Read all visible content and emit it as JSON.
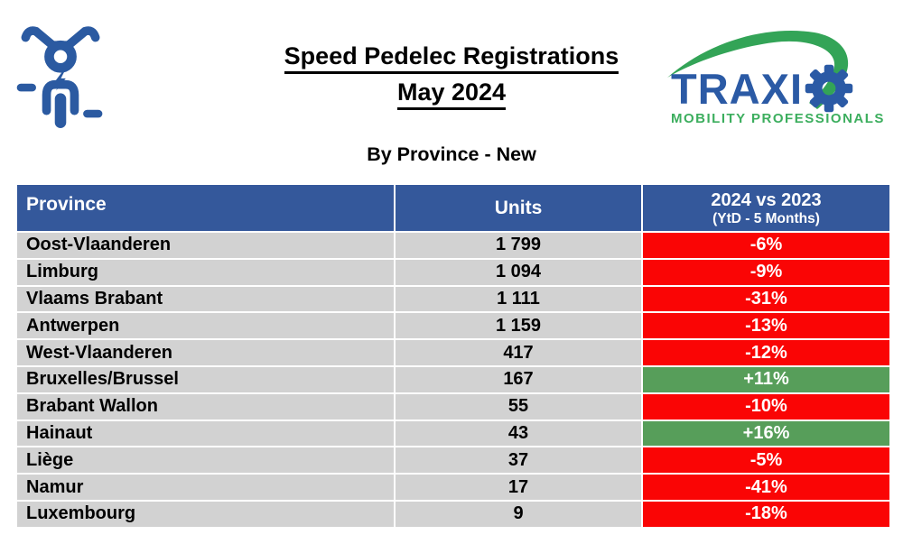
{
  "header": {
    "title_line1": "Speed Pedelec Registrations",
    "title_line2": "May 2024",
    "subtitle": "By Province - New"
  },
  "logo": {
    "brand_text": "TRAXI",
    "brand_o_icon": "gear-icon",
    "tagline": "MOBILITY PROFESSIONALS"
  },
  "icons": {
    "top_left": "speed-pedelec-icon"
  },
  "colors": {
    "header_bg": "#34589B",
    "row_bg": "#D2D2D2",
    "negative_bg": "#FA0505",
    "positive_bg": "#579E5A",
    "brand_blue": "#2B5AA5",
    "brand_green": "#33A457",
    "tagline_green": "#3CAE5E",
    "icon_blue": "#2B5AA1"
  },
  "table": {
    "columns": [
      "Province",
      "Units",
      "2024 vs 2023"
    ],
    "change_subtitle": "(YtD - 5 Months)",
    "rows": [
      {
        "province": "Oost-Vlaanderen",
        "units": "1 799",
        "change": "-6%"
      },
      {
        "province": "Limburg",
        "units": "1 094",
        "change": "-9%"
      },
      {
        "province": "Vlaams Brabant",
        "units": "1 111",
        "change": "-31%"
      },
      {
        "province": "Antwerpen",
        "units": "1 159",
        "change": "-13%"
      },
      {
        "province": "West-Vlaanderen",
        "units": "417",
        "change": "-12%"
      },
      {
        "province": "Bruxelles/Brussel",
        "units": "167",
        "change": "+11%"
      },
      {
        "province": "Brabant Wallon",
        "units": "55",
        "change": "-10%"
      },
      {
        "province": "Hainaut",
        "units": "43",
        "change": "+16%"
      },
      {
        "province": "Liège",
        "units": "37",
        "change": "-5%"
      },
      {
        "province": "Namur",
        "units": "17",
        "change": "-41%"
      },
      {
        "province": "Luxembourg",
        "units": "9",
        "change": "-18%"
      }
    ]
  }
}
